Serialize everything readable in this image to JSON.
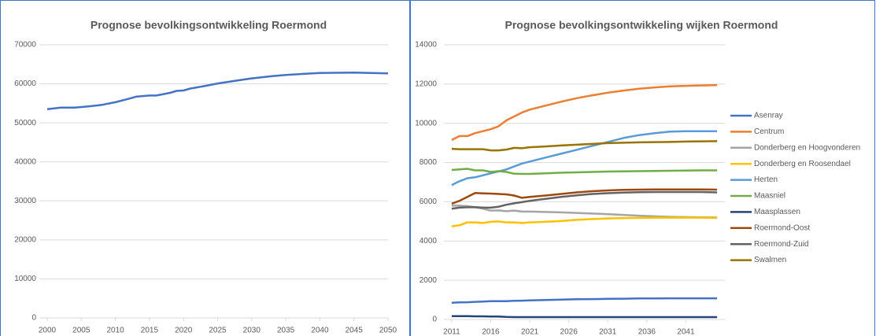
{
  "chart_data": [
    {
      "type": "line",
      "title": "Prognose bevolkingsontwikkeling Roermond",
      "x": [
        2000,
        2002,
        2004,
        2006,
        2008,
        2010,
        2012,
        2013,
        2015,
        2016,
        2018,
        2019,
        2020,
        2021,
        2023,
        2025,
        2028,
        2030,
        2033,
        2035,
        2040,
        2045,
        2050
      ],
      "values": [
        53500,
        53900,
        53900,
        54200,
        54600,
        55300,
        56200,
        56700,
        57000,
        57000,
        57700,
        58200,
        58300,
        58800,
        59400,
        60100,
        60900,
        61400,
        62000,
        62300,
        62800,
        62900,
        62700
      ],
      "color": "#4472c4",
      "xlim": [
        2000,
        2050
      ],
      "xticks": [
        2000,
        2005,
        2010,
        2015,
        2020,
        2025,
        2030,
        2035,
        2040,
        2045,
        2050
      ],
      "ylim": [
        0,
        70000
      ],
      "yticks": [
        0,
        10000,
        20000,
        30000,
        40000,
        50000,
        60000,
        70000
      ],
      "grid": true
    },
    {
      "type": "line",
      "title": "Prognose bevolkingsontwikkeling wijken Roermond",
      "x": [
        2011,
        2012,
        2013,
        2014,
        2015,
        2016,
        2017,
        2018,
        2019,
        2020,
        2021,
        2023,
        2025,
        2027,
        2029,
        2031,
        2033,
        2035,
        2037,
        2039,
        2041,
        2043,
        2045
      ],
      "series": [
        {
          "name": "Asenray",
          "color": "#4472c4",
          "values": [
            850,
            870,
            880,
            900,
            910,
            930,
            930,
            930,
            950,
            960,
            970,
            990,
            1010,
            1030,
            1040,
            1050,
            1060,
            1070,
            1070,
            1080,
            1080,
            1080,
            1080
          ]
        },
        {
          "name": "Centrum",
          "color": "#ed7d31",
          "values": [
            9150,
            9350,
            9350,
            9500,
            9600,
            9700,
            9850,
            10150,
            10350,
            10550,
            10700,
            10900,
            11100,
            11280,
            11430,
            11560,
            11670,
            11760,
            11830,
            11880,
            11910,
            11930,
            11950
          ]
        },
        {
          "name": "Donderberg en Hoogvonderen",
          "color": "#a5a5a5",
          "values": [
            5800,
            5800,
            5780,
            5720,
            5650,
            5550,
            5560,
            5520,
            5550,
            5500,
            5500,
            5480,
            5460,
            5430,
            5400,
            5370,
            5330,
            5290,
            5260,
            5230,
            5220,
            5210,
            5200
          ]
        },
        {
          "name": "Donderberg en Roosendael",
          "color": "#ffc000",
          "values": [
            4750,
            4800,
            4950,
            4950,
            4920,
            4980,
            5000,
            4950,
            4950,
            4920,
            4950,
            4980,
            5020,
            5080,
            5120,
            5150,
            5170,
            5180,
            5190,
            5190,
            5190,
            5190,
            5180
          ]
        },
        {
          "name": "Herten",
          "color": "#5b9bd5",
          "values": [
            6850,
            7050,
            7200,
            7250,
            7350,
            7450,
            7550,
            7650,
            7800,
            7950,
            8050,
            8250,
            8450,
            8650,
            8850,
            9050,
            9250,
            9400,
            9500,
            9580,
            9600,
            9600,
            9600
          ]
        },
        {
          "name": "Maasniel",
          "color": "#70ad47",
          "values": [
            7620,
            7650,
            7680,
            7600,
            7600,
            7520,
            7560,
            7520,
            7430,
            7420,
            7420,
            7450,
            7480,
            7500,
            7520,
            7540,
            7550,
            7560,
            7570,
            7580,
            7590,
            7600,
            7600
          ]
        },
        {
          "name": "Maasplassen",
          "color": "#264478",
          "values": [
            170,
            170,
            170,
            160,
            160,
            150,
            150,
            130,
            120,
            120,
            120,
            120,
            120,
            120,
            120,
            120,
            120,
            120,
            120,
            120,
            120,
            120,
            120
          ]
        },
        {
          "name": "Roermond-Oost",
          "color": "#9e480e",
          "values": [
            5900,
            6050,
            6250,
            6450,
            6430,
            6420,
            6400,
            6380,
            6320,
            6200,
            6250,
            6320,
            6400,
            6480,
            6540,
            6580,
            6610,
            6620,
            6630,
            6630,
            6630,
            6630,
            6620
          ]
        },
        {
          "name": "Roermond-Zuid",
          "color": "#636363",
          "values": [
            5650,
            5700,
            5720,
            5730,
            5700,
            5700,
            5750,
            5850,
            5920,
            5980,
            6050,
            6150,
            6250,
            6330,
            6400,
            6440,
            6470,
            6490,
            6500,
            6500,
            6500,
            6500,
            6480
          ]
        },
        {
          "name": "Swalmen",
          "color": "#997300",
          "values": [
            8700,
            8680,
            8680,
            8680,
            8680,
            8620,
            8620,
            8660,
            8750,
            8730,
            8780,
            8820,
            8870,
            8910,
            8950,
            8990,
            9010,
            9030,
            9040,
            9050,
            9070,
            9080,
            9090
          ]
        }
      ],
      "xlim": [
        2010,
        2046
      ],
      "xticks": [
        2011,
        2016,
        2021,
        2026,
        2031,
        2036,
        2041
      ],
      "ylim": [
        0,
        14000
      ],
      "yticks": [
        0,
        2000,
        4000,
        6000,
        8000,
        10000,
        12000,
        14000
      ],
      "grid": true,
      "legend": "right"
    }
  ]
}
